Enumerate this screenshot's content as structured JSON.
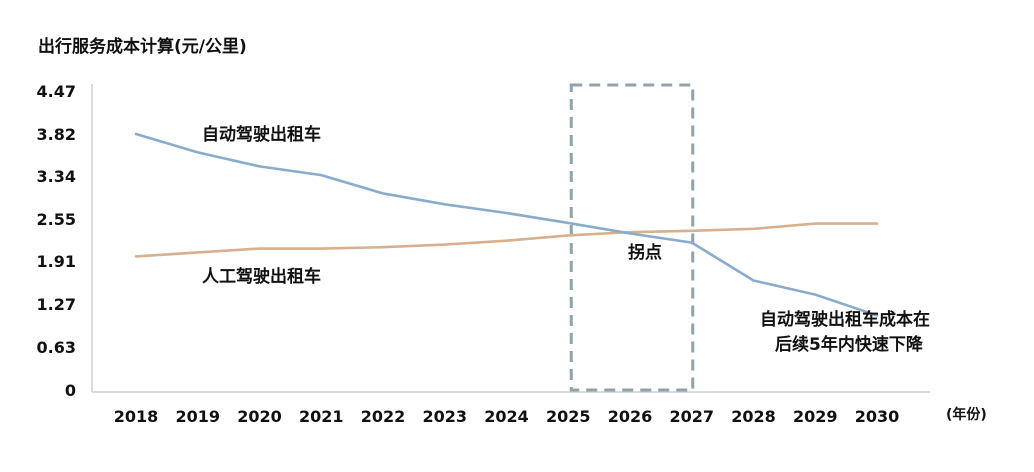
{
  "chart_data": {
    "type": "line",
    "ylabel": "出行服务成本计算(元/公里)",
    "x_unit": "(年份)",
    "x": [
      "2018",
      "2019",
      "2020",
      "2021",
      "2022",
      "2023",
      "2024",
      "2025",
      "2026",
      "2027",
      "2028",
      "2029",
      "2030"
    ],
    "yticks": [
      "0",
      "0.63",
      "1.27",
      "1.91",
      "2.55",
      "3.34",
      "3.82",
      "4.47"
    ],
    "series": [
      {
        "name": "自动驾驶出租车",
        "color": "#8aaccc",
        "values": [
          3.82,
          3.61,
          3.45,
          3.35,
          3.02,
          2.82,
          2.66,
          2.49,
          2.33,
          2.19,
          1.62,
          1.41,
          1.1
        ]
      },
      {
        "name": "人工驾驶出租车",
        "color": "#d8b08e",
        "values": [
          1.98,
          2.04,
          2.1,
          2.1,
          2.12,
          2.16,
          2.22,
          2.3,
          2.35,
          2.37,
          2.4,
          2.48,
          2.48
        ]
      }
    ],
    "highlight": {
      "x_start": "2025",
      "x_end": "2027",
      "label": "拐点",
      "color": "#8fa3ae"
    },
    "annotation": {
      "line1": "自动驾驶出租车成本在",
      "line2": "后续5年内快速下降"
    },
    "grid": false,
    "legend": "none"
  }
}
